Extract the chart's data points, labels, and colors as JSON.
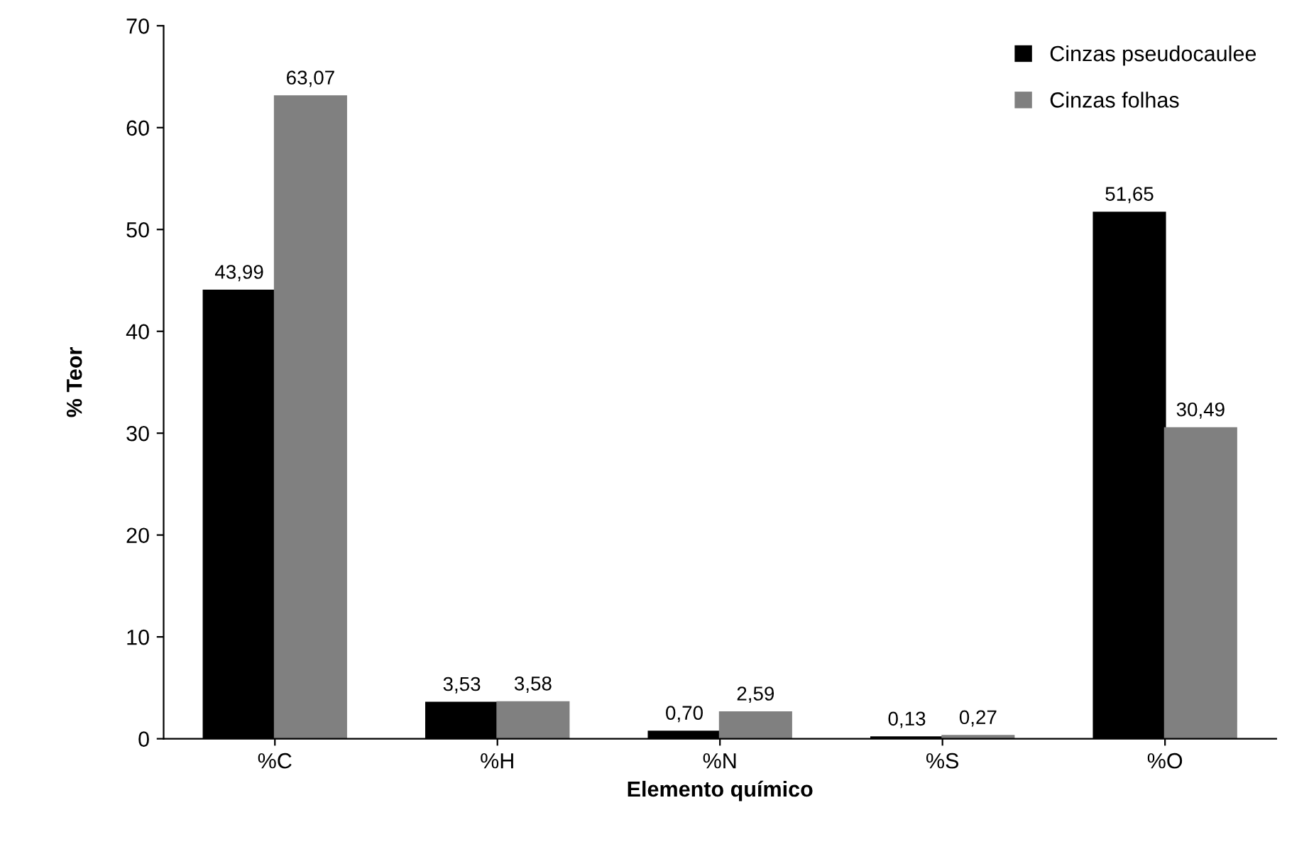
{
  "chart_data": {
    "type": "bar",
    "xlabel": "Elemento químico",
    "ylabel": "% Teor",
    "categories": [
      "%C",
      "%H",
      "%N",
      "%S",
      "%O"
    ],
    "series": [
      {
        "name": "Cinzas pseudocaulee",
        "color": "#000000",
        "values": [
          43.99,
          3.53,
          0.7,
          0.13,
          51.65
        ],
        "value_labels": [
          "43,99",
          "3,53",
          "0,70",
          "0,13",
          "51,65"
        ]
      },
      {
        "name": "Cinzas folhas",
        "color": "#808080",
        "values": [
          63.07,
          3.58,
          2.59,
          0.27,
          30.49
        ],
        "value_labels": [
          "63,07",
          "3,58",
          "2,59",
          "0,27",
          "30,49"
        ]
      }
    ],
    "ylim": [
      0,
      70
    ],
    "yticks": [
      0,
      10,
      20,
      30,
      40,
      50,
      60,
      70
    ],
    "grid": false,
    "legend": "top right"
  }
}
